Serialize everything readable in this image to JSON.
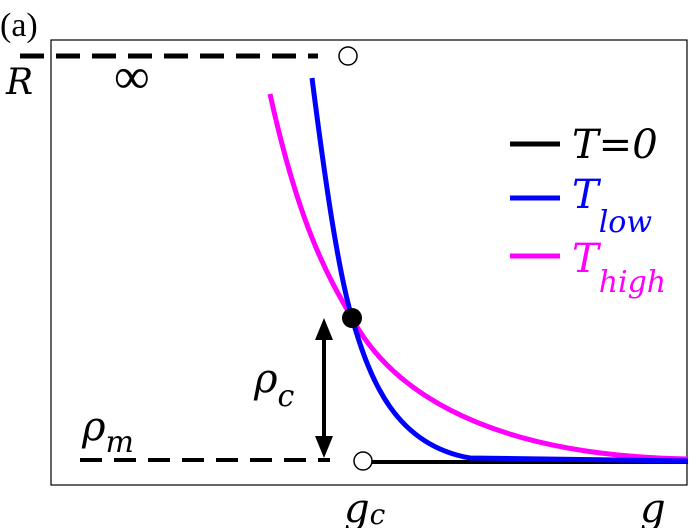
{
  "panel_label": "(a)",
  "y_axis_label": "R",
  "x_axis_label": "g",
  "critical_point_label": {
    "base": "g",
    "sub": "c"
  },
  "infinity_label": "∞",
  "rho_m_label": {
    "base": "ρ",
    "sub": "m"
  },
  "rho_c_label": {
    "base": "ρ",
    "sub": "c"
  },
  "legend": {
    "zero": {
      "text": "T=0",
      "color": "#000000"
    },
    "low": {
      "base": "T",
      "sub": "low",
      "color": "#0000ff"
    },
    "high": {
      "base": "T",
      "sub": "high",
      "color": "#ff00ff"
    }
  },
  "colors": {
    "t_zero": "#000000",
    "t_low": "#0000ff",
    "t_high": "#ff00ff"
  }
}
